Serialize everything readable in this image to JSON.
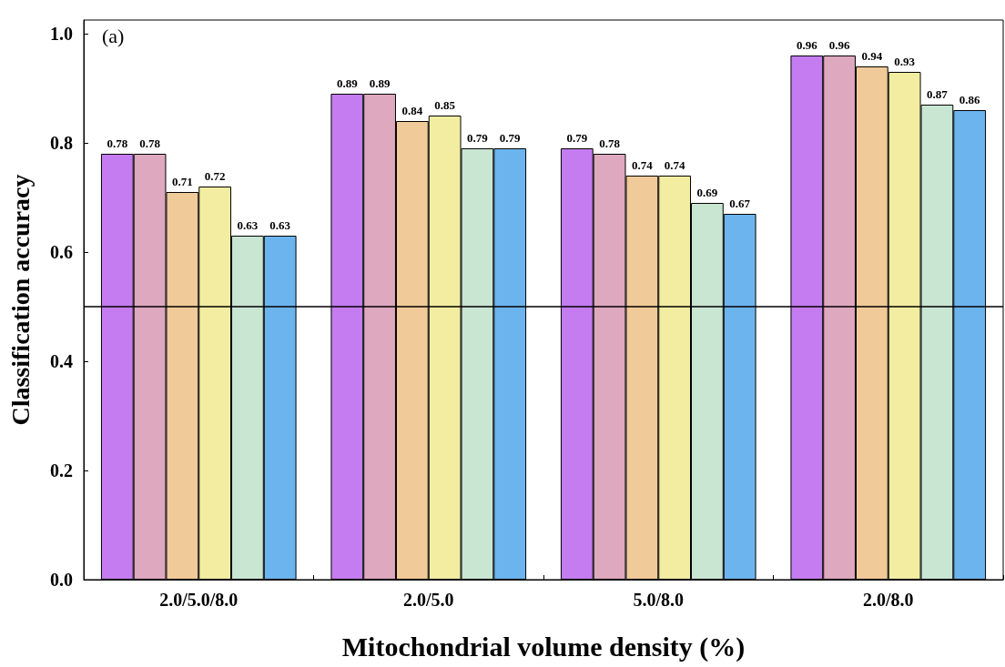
{
  "chart_data": {
    "type": "bar",
    "xlabel": "Mitochondrial volume density (%)",
    "ylabel": "Classification accuracy",
    "annotations": [
      "(a)"
    ],
    "categories": [
      "2.0/5.0/8.0",
      "2.0/5.0",
      "5.0/8.0",
      "2.0/8.0"
    ],
    "series": [
      {
        "color": "#c47cf0",
        "values": [
          0.78,
          0.89,
          0.79,
          0.96
        ]
      },
      {
        "color": "#dea8be",
        "values": [
          0.78,
          0.89,
          0.78,
          0.96
        ]
      },
      {
        "color": "#f0ca98",
        "values": [
          0.71,
          0.84,
          0.74,
          0.94
        ]
      },
      {
        "color": "#f3eda2",
        "values": [
          0.72,
          0.85,
          0.74,
          0.93
        ]
      },
      {
        "color": "#c9e6d3",
        "values": [
          0.63,
          0.79,
          0.69,
          0.87
        ]
      },
      {
        "color": "#6cb4ee",
        "values": [
          0.63,
          0.79,
          0.67,
          0.86
        ]
      }
    ],
    "ylim": [
      0,
      1.025
    ],
    "yticks": [
      {
        "value": 0,
        "label": "0.0"
      },
      {
        "value": 0.2,
        "label": "0.2"
      },
      {
        "value": 0.4,
        "label": "0.4"
      },
      {
        "value": 0.6,
        "label": "0.6"
      },
      {
        "value": 0.8,
        "label": "0.8"
      },
      {
        "value": 1,
        "label": "1.0"
      }
    ],
    "ref_lines": [
      {
        "axis": "y",
        "value": 0.5,
        "color": "#000000"
      }
    ],
    "data_labels": true
  }
}
